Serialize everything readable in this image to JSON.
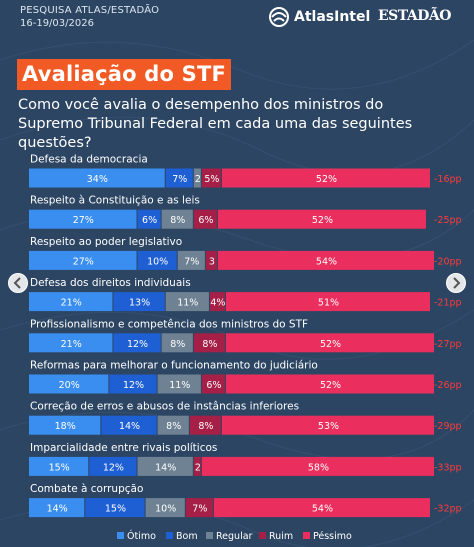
{
  "header": {
    "source": "PESQUISA ATLAS/ESTADÃO",
    "date": "16-19/03/2026",
    "logo_atlas": "AtlasIntel",
    "logo_estadao": "ESTADÃO"
  },
  "title": "Avaliação do STF",
  "subtitle": "Como você avalia o desempenho dos ministros do Supremo Tribunal Federal em cada uma das seguintes questões?",
  "colors": {
    "background": "#2c4563",
    "title_bg": "#f15a24",
    "otimo": "#3a8ef0",
    "bom": "#1e5fd4",
    "regular": "#6e8293",
    "ruim": "#a51f46",
    "pessimo": "#ea2f5e",
    "net": "#ff3a3a"
  },
  "icons": {
    "prev": "chevron-left-icon",
    "next": "chevron-right-icon"
  },
  "chart_data": {
    "type": "bar",
    "orientation": "horizontal-stacked-100",
    "categories": [
      "Defesa da democracia",
      "Respeito à Constituição e as leis",
      "Respeito ao poder legislativo",
      "Defesa dos direitos individuais",
      "Profissionalismo e competência dos ministros do STF",
      "Reformas para melhorar o funcionamento do judiciário",
      "Correção de erros e abusos de instâncias inferiores",
      "Imparcialidade entre rivais políticos",
      "Combate à corrupção"
    ],
    "series": [
      {
        "name": "Ótimo",
        "values": [
          34,
          27,
          27,
          21,
          21,
          20,
          18,
          15,
          14
        ]
      },
      {
        "name": "Bom",
        "values": [
          7,
          6,
          10,
          13,
          12,
          12,
          14,
          12,
          15
        ]
      },
      {
        "name": "Regular",
        "values": [
          2,
          8,
          7,
          11,
          8,
          11,
          8,
          14,
          10
        ]
      },
      {
        "name": "Ruim",
        "values": [
          5,
          6,
          3,
          4,
          8,
          6,
          8,
          2,
          7
        ]
      },
      {
        "name": "Péssimo",
        "values": [
          52,
          52,
          54,
          51,
          52,
          52,
          53,
          58,
          54
        ]
      }
    ],
    "net": [
      "-16pp",
      "-25pp",
      "-20pp",
      "-21pp",
      "-27pp",
      "-26pp",
      "-29pp",
      "-33pp",
      "-32pp"
    ],
    "legend_position": "bottom",
    "xlim": [
      0,
      100
    ]
  }
}
